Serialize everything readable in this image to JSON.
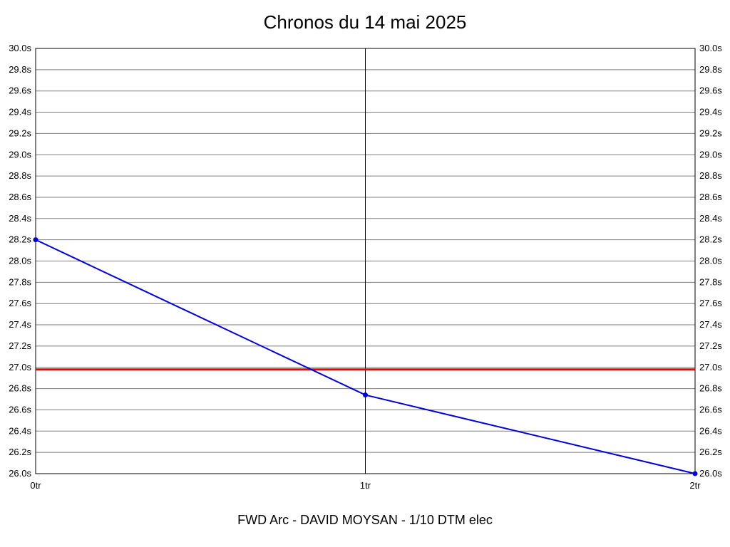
{
  "title": "Chronos du 14 mai 2025",
  "footer": "FWD Arc - DAVID MOYSAN - 1/10 DTM elec",
  "colors": {
    "series_line": "#0000dd",
    "reference_line": "#ee0000",
    "gridline": "#7f7f7f",
    "axis_border": "#000000",
    "background": "#ffffff",
    "text": "#000000"
  },
  "chart_data": {
    "type": "line",
    "title": "Chronos du 14 mai 2025",
    "caption": "FWD Arc - DAVID MOYSAN - 1/10 DTM elec",
    "x_categories": [
      "0tr",
      "1tr",
      "2tr"
    ],
    "x_tick_labels": [
      "0tr",
      "1tr",
      "2tr"
    ],
    "series": [
      {
        "name": "lap-times",
        "color": "#0000dd",
        "values": [
          28.2,
          26.74,
          26.0
        ],
        "unit": "s",
        "markers": true
      }
    ],
    "reference_line": {
      "name": "target-time",
      "value": 26.98,
      "color": "#ee0000"
    },
    "ylim": [
      26.0,
      30.0
    ],
    "ytick_step": 0.2,
    "y_tick_labels": [
      "30.0s",
      "29.8s",
      "29.6s",
      "29.4s",
      "29.2s",
      "29.0s",
      "28.8s",
      "28.6s",
      "28.4s",
      "28.2s",
      "28.0s",
      "27.8s",
      "27.6s",
      "27.4s",
      "27.2s",
      "27.0s",
      "26.8s",
      "26.6s",
      "26.4s",
      "26.2s",
      "26.0s"
    ],
    "y_axis_sides": [
      "left",
      "right"
    ],
    "grid": true,
    "legend": "none",
    "xlabel": "",
    "ylabel": ""
  }
}
